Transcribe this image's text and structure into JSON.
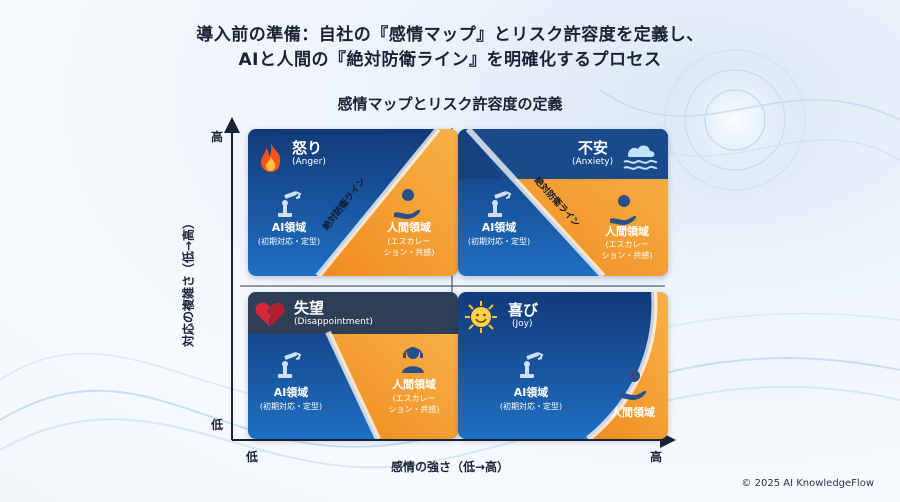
{
  "header": {
    "title_line1": "導入前の準備：自社の『感情マップ』とリスク許容度を定義し、",
    "title_line2": "AIと人間の『絶対防衛ライン』を明確化するプロセス",
    "subtitle": "感情マップとリスク許容度の定義"
  },
  "axes": {
    "y_label": "対応の複雑さ（低→高）",
    "y_high": "高",
    "y_low": "低",
    "x_label": "感情の強さ（低→高）",
    "x_low": "低",
    "x_high": "高"
  },
  "quadrants": {
    "anger": {
      "title": "怒り",
      "sub": "(Anger)",
      "ai_label": "AI領域",
      "ai_sub": "(初期対応・定型)",
      "human_label": "人間領域",
      "human_sub1": "(エスカレー",
      "human_sub2": "ション・共感)",
      "line_label": "絶対防衛ライン",
      "icon": "fire-icon"
    },
    "anxiety": {
      "title": "不安",
      "sub": "(Anxiety)",
      "ai_label": "AI領域",
      "ai_sub": "(初期対応・定型)",
      "human_label": "人間領域",
      "human_sub1": "(エスカレー",
      "human_sub2": "ション・共感)",
      "line_label": "絶対防衛ライン",
      "icon": "wave-icon"
    },
    "disappointment": {
      "title": "失望",
      "sub": "(Disappointment)",
      "ai_label": "AI領域",
      "ai_sub": "(初期対応・定型)",
      "human_label": "人間領域",
      "human_sub1": "(エスカレー",
      "human_sub2": "ション・共感)",
      "icon": "broken-heart-icon"
    },
    "joy": {
      "title": "喜び",
      "sub": "(Joy)",
      "ai_label": "AI領域",
      "ai_sub": "(初期対応・定型)",
      "human_label": "人間領域",
      "icon": "sun-icon"
    }
  },
  "footer": {
    "copyright": "© 2025 AI KnowledgeFlow"
  },
  "colors": {
    "blue_dark": "#123a78",
    "blue_mid": "#1f6fc2",
    "orange": "#f08a1f",
    "orange_light": "#f7b248"
  }
}
